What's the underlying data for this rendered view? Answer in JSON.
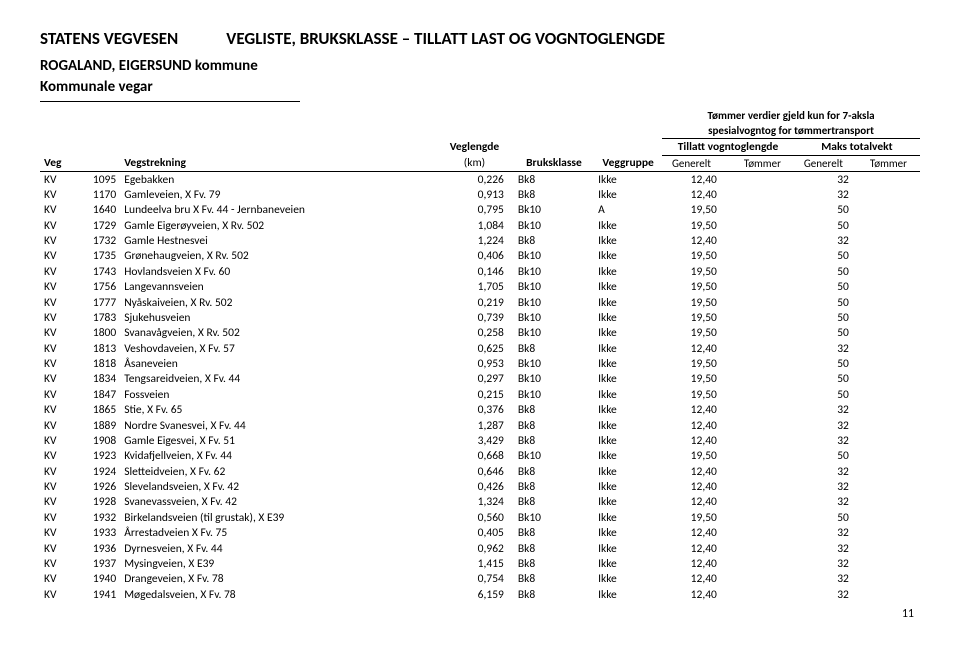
{
  "header": {
    "agency": "STATENS VEGVESEN",
    "title": "VEGLISTE, BRUKSKLASSE – TILLATT LAST OG VOGNTOGLENGDE",
    "region_line1": "ROGALAND, EIGERSUND kommune",
    "region_line2": "Kommunale vegar"
  },
  "columns": {
    "veg": "Veg",
    "vegstrekning": "Vegstrekning",
    "veglengde": "Veglengde",
    "veglengde_unit": "(km)",
    "bruksklasse": "Bruksklasse",
    "veggruppe": "Veggruppe",
    "note_line1": "Tømmer verdier gjeld kun for 7-aksla",
    "note_line2": "spesialvogntog for tømmertransport",
    "tillatt": "Tillatt vogntoglengde",
    "maks": "Maks totalvekt",
    "generelt": "Generelt",
    "tommer": "Tømmer"
  },
  "rows": [
    {
      "v1": "KV",
      "v2": "1095",
      "str": "Egebakken",
      "len": "0,226",
      "bk": "Bk8",
      "vg": "Ikke",
      "g1": "12,40",
      "t1": "",
      "g2": "32",
      "t2": ""
    },
    {
      "v1": "KV",
      "v2": "1170",
      "str": "Gamleveien, X Fv. 79",
      "len": "0,913",
      "bk": "Bk8",
      "vg": "Ikke",
      "g1": "12,40",
      "t1": "",
      "g2": "32",
      "t2": ""
    },
    {
      "v1": "KV",
      "v2": "1640",
      "str": "Lundeelva bru X Fv. 44 - Jernbaneveien",
      "len": "0,795",
      "bk": "Bk10",
      "vg": "A",
      "g1": "19,50",
      "t1": "",
      "g2": "50",
      "t2": ""
    },
    {
      "v1": "KV",
      "v2": "1729",
      "str": "Gamle Eigerøyveien,  X Rv. 502",
      "len": "1,084",
      "bk": "Bk10",
      "vg": "Ikke",
      "g1": "19,50",
      "t1": "",
      "g2": "50",
      "t2": ""
    },
    {
      "v1": "KV",
      "v2": "1732",
      "str": "Gamle Hestnesvei",
      "len": "1,224",
      "bk": "Bk8",
      "vg": "Ikke",
      "g1": "12,40",
      "t1": "",
      "g2": "32",
      "t2": ""
    },
    {
      "v1": "KV",
      "v2": "1735",
      "str": "Grønehaugveien, X Rv. 502",
      "len": "0,406",
      "bk": "Bk10",
      "vg": "Ikke",
      "g1": "19,50",
      "t1": "",
      "g2": "50",
      "t2": ""
    },
    {
      "v1": "KV",
      "v2": "1743",
      "str": "Hovlandsveien X Fv. 60",
      "len": "0,146",
      "bk": "Bk10",
      "vg": "Ikke",
      "g1": "19,50",
      "t1": "",
      "g2": "50",
      "t2": ""
    },
    {
      "v1": "KV",
      "v2": "1756",
      "str": "Langevannsveien",
      "len": "1,705",
      "bk": "Bk10",
      "vg": "Ikke",
      "g1": "19,50",
      "t1": "",
      "g2": "50",
      "t2": ""
    },
    {
      "v1": "KV",
      "v2": "1777",
      "str": "Nyåskaiveien, X Rv. 502",
      "len": "0,219",
      "bk": "Bk10",
      "vg": "Ikke",
      "g1": "19,50",
      "t1": "",
      "g2": "50",
      "t2": ""
    },
    {
      "v1": "KV",
      "v2": "1783",
      "str": "Sjukehusveien",
      "len": "0,739",
      "bk": "Bk10",
      "vg": "Ikke",
      "g1": "19,50",
      "t1": "",
      "g2": "50",
      "t2": ""
    },
    {
      "v1": "KV",
      "v2": "1800",
      "str": "Svanavågveien, X Rv. 502",
      "len": "0,258",
      "bk": "Bk10",
      "vg": "Ikke",
      "g1": "19,50",
      "t1": "",
      "g2": "50",
      "t2": ""
    },
    {
      "v1": "KV",
      "v2": "1813",
      "str": "Veshovdaveien, X Fv. 57",
      "len": "0,625",
      "bk": "Bk8",
      "vg": "Ikke",
      "g1": "12,40",
      "t1": "",
      "g2": "32",
      "t2": ""
    },
    {
      "v1": "KV",
      "v2": "1818",
      "str": "Åsaneveien",
      "len": "0,953",
      "bk": "Bk10",
      "vg": "Ikke",
      "g1": "19,50",
      "t1": "",
      "g2": "50",
      "t2": ""
    },
    {
      "v1": "KV",
      "v2": "1834",
      "str": "Tengsareidveien, X Fv. 44",
      "len": "0,297",
      "bk": "Bk10",
      "vg": "Ikke",
      "g1": "19,50",
      "t1": "",
      "g2": "50",
      "t2": ""
    },
    {
      "v1": "KV",
      "v2": "1847",
      "str": "Fossveien",
      "len": "0,215",
      "bk": "Bk10",
      "vg": "Ikke",
      "g1": "19,50",
      "t1": "",
      "g2": "50",
      "t2": ""
    },
    {
      "v1": "KV",
      "v2": "1865",
      "str": "Stie, X Fv. 65",
      "len": "0,376",
      "bk": "Bk8",
      "vg": "Ikke",
      "g1": "12,40",
      "t1": "",
      "g2": "32",
      "t2": ""
    },
    {
      "v1": "KV",
      "v2": "1889",
      "str": "Nordre Svanesvei, X Fv. 44",
      "len": "1,287",
      "bk": "Bk8",
      "vg": "Ikke",
      "g1": "12,40",
      "t1": "",
      "g2": "32",
      "t2": ""
    },
    {
      "v1": "KV",
      "v2": "1908",
      "str": "Gamle Eigesvei, X Fv. 51",
      "len": "3,429",
      "bk": "Bk8",
      "vg": "Ikke",
      "g1": "12,40",
      "t1": "",
      "g2": "32",
      "t2": ""
    },
    {
      "v1": "KV",
      "v2": "1923",
      "str": "Kvidafjellveien, X Fv. 44",
      "len": "0,668",
      "bk": "Bk10",
      "vg": "Ikke",
      "g1": "19,50",
      "t1": "",
      "g2": "50",
      "t2": ""
    },
    {
      "v1": "KV",
      "v2": "1924",
      "str": "Sletteidveien, X Fv. 62",
      "len": "0,646",
      "bk": "Bk8",
      "vg": "Ikke",
      "g1": "12,40",
      "t1": "",
      "g2": "32",
      "t2": ""
    },
    {
      "v1": "KV",
      "v2": "1926",
      "str": "Slevelandsveien, X Fv. 42",
      "len": "0,426",
      "bk": "Bk8",
      "vg": "Ikke",
      "g1": "12,40",
      "t1": "",
      "g2": "32",
      "t2": ""
    },
    {
      "v1": "KV",
      "v2": "1928",
      "str": "Svanevassveien, X Fv. 42",
      "len": "1,324",
      "bk": "Bk8",
      "vg": "Ikke",
      "g1": "12,40",
      "t1": "",
      "g2": "32",
      "t2": ""
    },
    {
      "v1": "KV",
      "v2": "1932",
      "str": "Birkelandsveien (til grustak), X E39",
      "len": "0,560",
      "bk": "Bk10",
      "vg": "Ikke",
      "g1": "19,50",
      "t1": "",
      "g2": "50",
      "t2": ""
    },
    {
      "v1": "KV",
      "v2": "1933",
      "str": "Årrestadveien X Fv. 75",
      "len": "0,405",
      "bk": "Bk8",
      "vg": "Ikke",
      "g1": "12,40",
      "t1": "",
      "g2": "32",
      "t2": ""
    },
    {
      "v1": "KV",
      "v2": "1936",
      "str": "Dyrnesveien, X Fv. 44",
      "len": "0,962",
      "bk": "Bk8",
      "vg": "Ikke",
      "g1": "12,40",
      "t1": "",
      "g2": "32",
      "t2": ""
    },
    {
      "v1": "KV",
      "v2": "1937",
      "str": "Mysingveien, X E39",
      "len": "1,415",
      "bk": "Bk8",
      "vg": "Ikke",
      "g1": "12,40",
      "t1": "",
      "g2": "32",
      "t2": ""
    },
    {
      "v1": "KV",
      "v2": "1940",
      "str": "Drangeveien, X Fv. 78",
      "len": "0,754",
      "bk": "Bk8",
      "vg": "Ikke",
      "g1": "12,40",
      "t1": "",
      "g2": "32",
      "t2": ""
    },
    {
      "v1": "KV",
      "v2": "1941",
      "str": "Møgedalsveien, X Fv. 78",
      "len": "6,159",
      "bk": "Bk8",
      "vg": "Ikke",
      "g1": "12,40",
      "t1": "",
      "g2": "32",
      "t2": ""
    }
  ],
  "page_number": "11"
}
